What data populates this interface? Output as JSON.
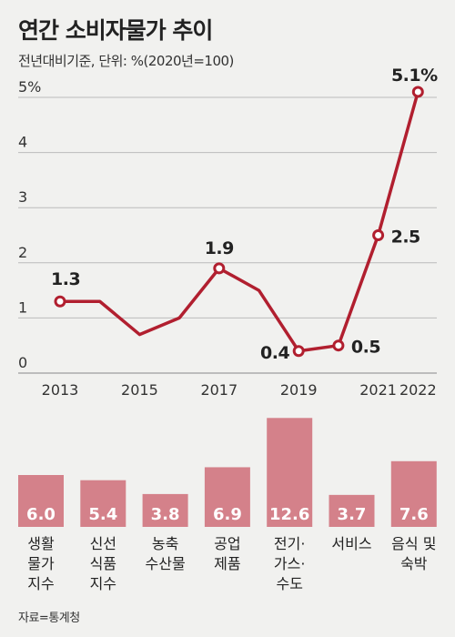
{
  "header": {
    "title": "연간 소비자물가 추이",
    "subtitle": "전년대비기준, 단위: %(2020년=100)"
  },
  "source": "자료=통계청",
  "colors": {
    "line": "#b11f2f",
    "bar": "#d4818a",
    "grid": "#bbbbbb",
    "background": "#f1f1ef"
  },
  "chart_data": [
    {
      "type": "line",
      "x": [
        2013,
        2014,
        2015,
        2016,
        2017,
        2018,
        2019,
        2020,
        2021,
        2022
      ],
      "series": [
        {
          "values": [
            1.3,
            1.3,
            0.7,
            1.0,
            1.9,
            1.5,
            0.4,
            0.5,
            2.5,
            5.1
          ]
        }
      ],
      "x_tick_labels": [
        "2013",
        "2015",
        "2017",
        "2019",
        "2021",
        "2022"
      ],
      "y_tick_labels": [
        "5%",
        "4",
        "3",
        "2",
        "1",
        "0"
      ],
      "data_labels": [
        {
          "x": 2013,
          "text": "1.3"
        },
        {
          "x": 2017,
          "text": "1.9"
        },
        {
          "x": 2019,
          "text": "0.4"
        },
        {
          "x": 2020,
          "text": "0.5"
        },
        {
          "x": 2021,
          "text": "2.5"
        },
        {
          "x": 2022,
          "text": "5.1%"
        }
      ],
      "marked_points": [
        2013,
        2017,
        2019,
        2020,
        2021,
        2022
      ],
      "ylim": [
        0,
        5
      ],
      "grid": true
    },
    {
      "type": "bar",
      "categories": [
        "생활물가지수",
        "신선식품지수",
        "농축수산물",
        "공업제품",
        "전기·가스·수도",
        "서비스",
        "음식 및 숙박"
      ],
      "category_lines": [
        [
          "생활",
          "물가",
          "지수"
        ],
        [
          "신선",
          "식품",
          "지수"
        ],
        [
          "농축",
          "수산물"
        ],
        [
          "공업",
          "제품"
        ],
        [
          "전기·",
          "가스·",
          "수도"
        ],
        [
          "서비스"
        ],
        [
          "음식 및",
          "숙박"
        ]
      ],
      "values": [
        6.0,
        5.4,
        3.8,
        6.9,
        12.6,
        3.7,
        7.6
      ],
      "value_labels": [
        "6.0",
        "5.4",
        "3.8",
        "6.9",
        "12.6",
        "3.7",
        "7.6"
      ]
    }
  ]
}
